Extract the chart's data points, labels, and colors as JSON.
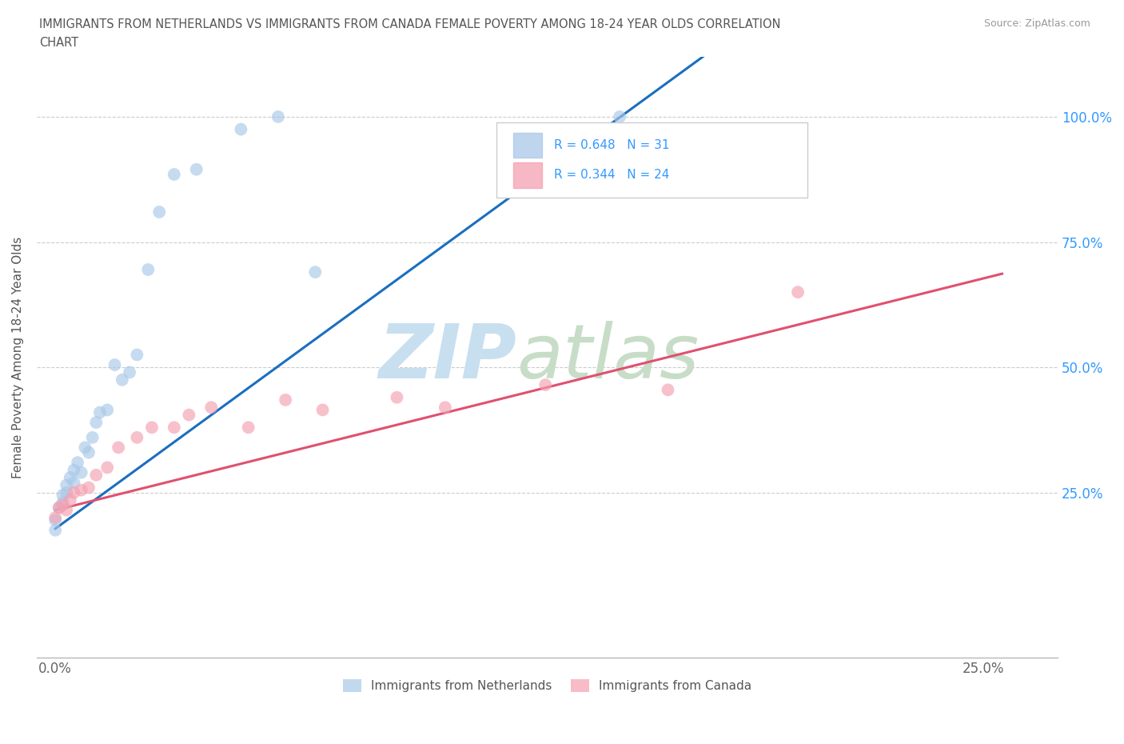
{
  "title_line1": "IMMIGRANTS FROM NETHERLANDS VS IMMIGRANTS FROM CANADA FEMALE POVERTY AMONG 18-24 YEAR OLDS CORRELATION",
  "title_line2": "CHART",
  "source": "Source: ZipAtlas.com",
  "ylabel": "Female Poverty Among 18-24 Year Olds",
  "xlim": [
    -0.005,
    0.27
  ],
  "ylim": [
    -0.08,
    1.12
  ],
  "netherlands_color": "#a8c8e8",
  "canada_color": "#f4a0b0",
  "nl_line_color": "#1a6fbf",
  "ca_line_color": "#e05070",
  "netherlands_R": 0.648,
  "netherlands_N": 31,
  "canada_R": 0.344,
  "canada_N": 24,
  "nl_x": [
    0.0,
    0.0,
    0.001,
    0.002,
    0.002,
    0.003,
    0.003,
    0.004,
    0.005,
    0.005,
    0.006,
    0.007,
    0.008,
    0.009,
    0.01,
    0.011,
    0.012,
    0.014,
    0.016,
    0.018,
    0.02,
    0.022,
    0.025,
    0.028,
    0.032,
    0.038,
    0.05,
    0.06,
    0.07,
    0.152,
    0.162
  ],
  "nl_y": [
    0.175,
    0.195,
    0.22,
    0.23,
    0.245,
    0.25,
    0.265,
    0.28,
    0.27,
    0.295,
    0.31,
    0.29,
    0.34,
    0.33,
    0.36,
    0.39,
    0.41,
    0.415,
    0.505,
    0.475,
    0.49,
    0.525,
    0.695,
    0.81,
    0.885,
    0.895,
    0.975,
    1.0,
    0.69,
    1.0,
    0.885
  ],
  "ca_x": [
    0.0,
    0.001,
    0.002,
    0.003,
    0.004,
    0.005,
    0.007,
    0.009,
    0.011,
    0.014,
    0.017,
    0.022,
    0.026,
    0.032,
    0.036,
    0.042,
    0.052,
    0.062,
    0.072,
    0.092,
    0.105,
    0.132,
    0.165,
    0.2
  ],
  "ca_y": [
    0.2,
    0.22,
    0.225,
    0.215,
    0.235,
    0.25,
    0.255,
    0.26,
    0.285,
    0.3,
    0.34,
    0.36,
    0.38,
    0.38,
    0.405,
    0.42,
    0.38,
    0.435,
    0.415,
    0.44,
    0.42,
    0.465,
    0.455,
    0.65
  ]
}
